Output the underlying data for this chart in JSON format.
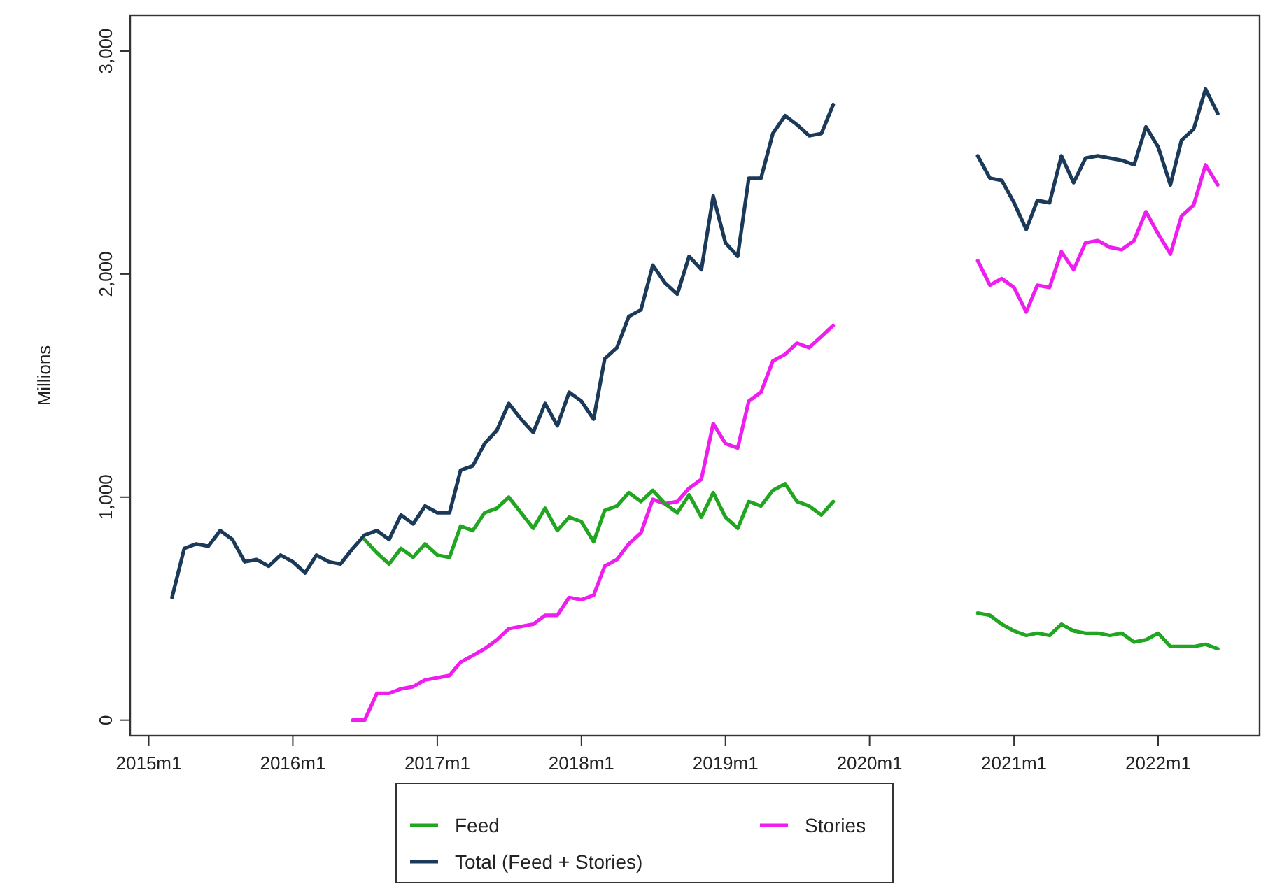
{
  "chart_data": {
    "type": "line",
    "ylabel": "Millions",
    "x": [
      "2015-03",
      "2015-04",
      "2015-05",
      "2015-06",
      "2015-07",
      "2015-08",
      "2015-09",
      "2015-10",
      "2015-11",
      "2015-12",
      "2016-01",
      "2016-02",
      "2016-03",
      "2016-04",
      "2016-05",
      "2016-06",
      "2016-07",
      "2016-08",
      "2016-09",
      "2016-10",
      "2016-11",
      "2016-12",
      "2017-01",
      "2017-02",
      "2017-03",
      "2017-04",
      "2017-05",
      "2017-06",
      "2017-07",
      "2017-08",
      "2017-09",
      "2017-10",
      "2017-11",
      "2017-12",
      "2018-01",
      "2018-02",
      "2018-03",
      "2018-04",
      "2018-05",
      "2018-06",
      "2018-07",
      "2018-08",
      "2018-09",
      "2018-10",
      "2018-11",
      "2018-12",
      "2019-01",
      "2019-02",
      "2019-03",
      "2019-04",
      "2019-05",
      "2019-06",
      "2019-07",
      "2019-08",
      "2019-09",
      "2019-10",
      "2019-11",
      "2019-12",
      "2020-01",
      "2020-02",
      "2020-03",
      "2020-04",
      "2020-05",
      "2020-06",
      "2020-07",
      "2020-08",
      "2020-09",
      "2020-10",
      "2020-11",
      "2020-12",
      "2021-01",
      "2021-02",
      "2021-03",
      "2021-04",
      "2021-05",
      "2021-06",
      "2021-07",
      "2021-08",
      "2021-09",
      "2021-10",
      "2021-11",
      "2021-12",
      "2022-01",
      "2022-02",
      "2022-03",
      "2022-04",
      "2022-05",
      "2022-06"
    ],
    "series": [
      {
        "name": "Feed",
        "color": "#22a622",
        "values": [
          null,
          null,
          null,
          null,
          null,
          null,
          null,
          null,
          null,
          null,
          null,
          null,
          null,
          null,
          null,
          null,
          810,
          750,
          700,
          770,
          730,
          790,
          740,
          730,
          870,
          850,
          930,
          950,
          1000,
          930,
          860,
          950,
          850,
          910,
          890,
          800,
          940,
          960,
          1020,
          980,
          1030,
          970,
          930,
          1010,
          910,
          1020,
          910,
          860,
          980,
          960,
          1030,
          1060,
          980,
          960,
          920,
          980,
          null,
          null,
          null,
          null,
          null,
          null,
          null,
          null,
          null,
          null,
          null,
          480,
          470,
          430,
          400,
          380,
          390,
          380,
          430,
          400,
          390,
          390,
          380,
          390,
          350,
          360,
          390,
          330,
          330,
          330,
          340,
          320
        ]
      },
      {
        "name": "Stories",
        "color": "#ee1eee",
        "values": [
          null,
          null,
          null,
          null,
          null,
          null,
          null,
          null,
          null,
          null,
          null,
          null,
          null,
          null,
          null,
          0,
          0,
          120,
          120,
          140,
          150,
          180,
          190,
          200,
          260,
          290,
          320,
          360,
          410,
          420,
          430,
          470,
          470,
          550,
          540,
          560,
          690,
          720,
          790,
          840,
          990,
          970,
          980,
          1040,
          1080,
          1330,
          1240,
          1220,
          1430,
          1470,
          1610,
          1640,
          1690,
          1670,
          1720,
          1770,
          null,
          null,
          null,
          null,
          null,
          null,
          null,
          null,
          null,
          null,
          null,
          2060,
          1950,
          1980,
          1940,
          1830,
          1950,
          1940,
          2100,
          2020,
          2140,
          2150,
          2120,
          2110,
          2150,
          2280,
          2180,
          2090,
          2260,
          2310,
          2490,
          2400
        ]
      },
      {
        "name": "Total (Feed + Stories)",
        "color": "#1b3a5a",
        "values": [
          550,
          770,
          790,
          780,
          850,
          810,
          710,
          720,
          690,
          740,
          710,
          660,
          740,
          710,
          700,
          770,
          830,
          850,
          810,
          920,
          880,
          960,
          930,
          930,
          1120,
          1140,
          1240,
          1300,
          1420,
          1350,
          1290,
          1420,
          1320,
          1470,
          1430,
          1350,
          1620,
          1670,
          1810,
          1840,
          2040,
          1960,
          1910,
          2080,
          2020,
          2350,
          2140,
          2080,
          2430,
          2430,
          2630,
          2710,
          2670,
          2620,
          2630,
          2760,
          null,
          null,
          null,
          null,
          null,
          null,
          null,
          null,
          null,
          null,
          null,
          2530,
          2430,
          2420,
          2320,
          2200,
          2330,
          2320,
          2530,
          2410,
          2520,
          2530,
          2520,
          2510,
          2490,
          2660,
          2570,
          2400,
          2600,
          2650,
          2830,
          2720
        ]
      }
    ],
    "xlim": [
      "2014-11-15",
      "2022-09-15"
    ],
    "xticks": [
      {
        "value": "2015-01",
        "label": "2015m1"
      },
      {
        "value": "2016-01",
        "label": "2016m1"
      },
      {
        "value": "2017-01",
        "label": "2017m1"
      },
      {
        "value": "2018-01",
        "label": "2018m1"
      },
      {
        "value": "2019-01",
        "label": "2019m1"
      },
      {
        "value": "2020-01",
        "label": "2020m1"
      },
      {
        "value": "2021-01",
        "label": "2021m1"
      },
      {
        "value": "2022-01",
        "label": "2022m1"
      }
    ],
    "ylim": [
      -70,
      3160
    ],
    "yticks": [
      0,
      {
        "value": 1000,
        "label": "1,000"
      },
      {
        "value": 2000,
        "label": "2,000"
      },
      {
        "value": 3000,
        "label": "3,000"
      }
    ],
    "grid": false,
    "legend": "bottom",
    "line_style": "solid",
    "marker": "none"
  }
}
